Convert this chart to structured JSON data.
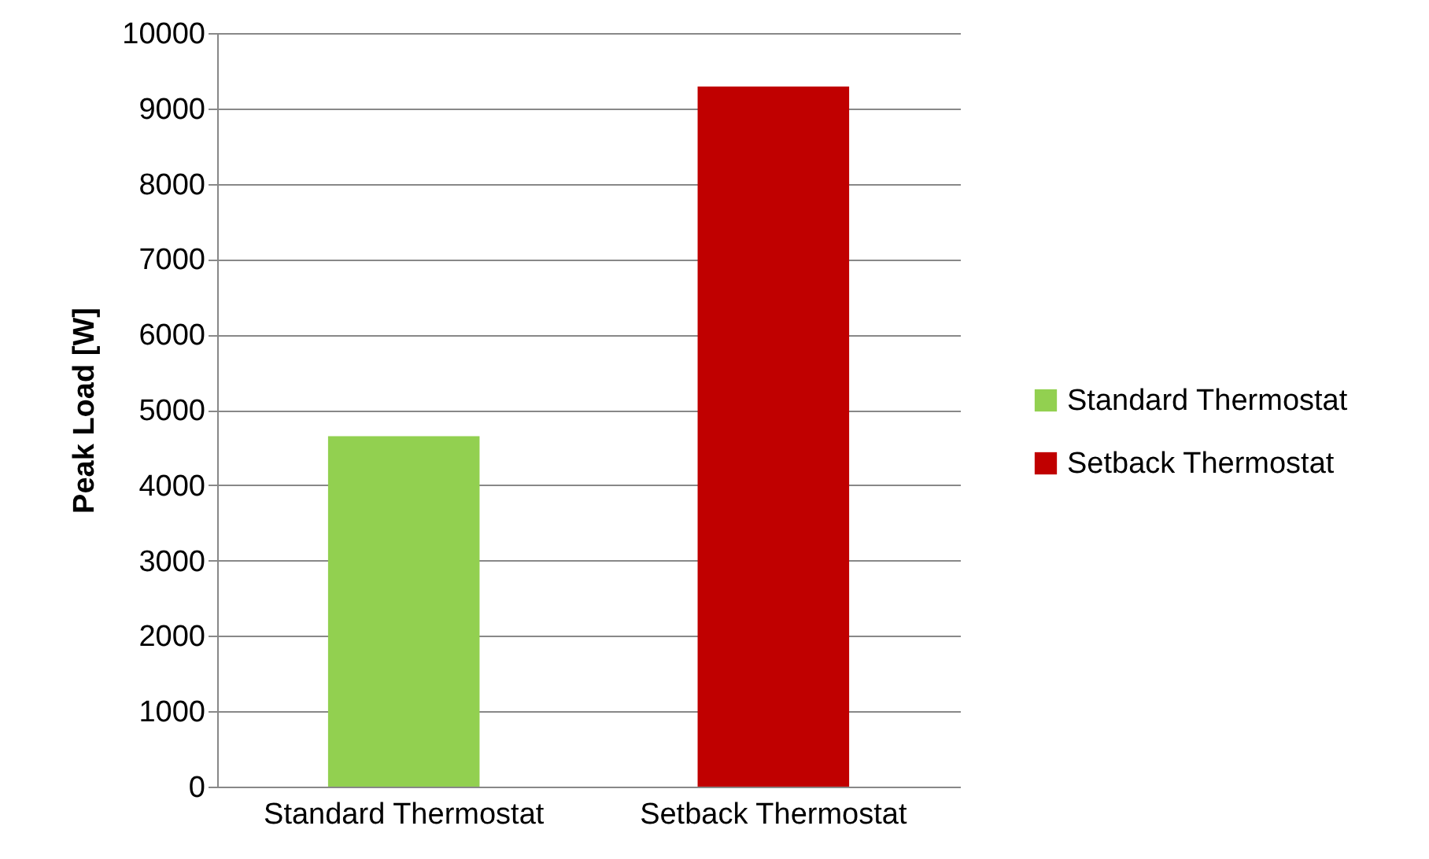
{
  "chart_data": {
    "type": "bar",
    "ylabel": "Peak Load [W]",
    "categories": [
      "Standard Thermostat",
      "Setback Thermostat"
    ],
    "series": [
      {
        "name": "Standard Thermostat",
        "color": "#92d050",
        "values": [
          4650,
          null
        ]
      },
      {
        "name": "Setback Thermostat",
        "color": "#c00000",
        "values": [
          null,
          9290
        ]
      }
    ],
    "ylim": [
      0,
      10000
    ],
    "yticks": [
      0,
      1000,
      2000,
      3000,
      4000,
      5000,
      6000,
      7000,
      8000,
      9000,
      10000
    ],
    "grid": "y",
    "legend": "right"
  }
}
